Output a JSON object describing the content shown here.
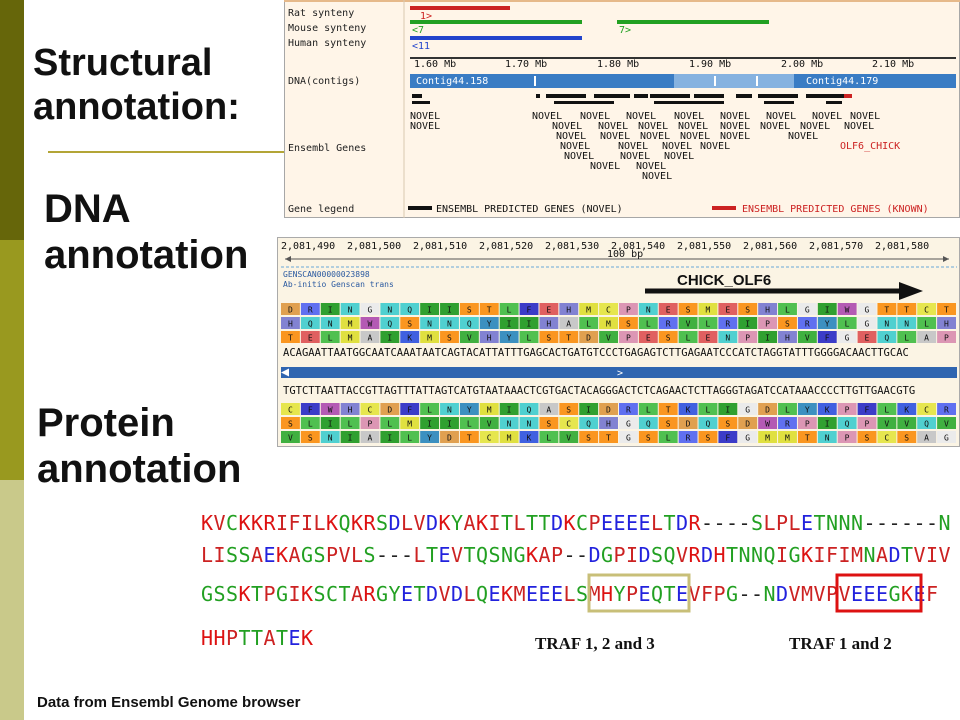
{
  "slide": {
    "heading_structural": "Structural\nannotation:",
    "heading_dna": "DNA\nannotation",
    "heading_protein": "Protein\nannotation",
    "footer": "Data from Ensembl Genome browser"
  },
  "ensembl_panel": {
    "track_rat": "Rat synteny",
    "track_mouse": "Mouse synteny",
    "track_human": "Human synteny",
    "track_dna": "DNA(contigs)",
    "track_genes": "Ensembl Genes",
    "track_legend": "Gene legend",
    "synteny_rat": "1>",
    "synteny_mouse_left": "<7",
    "synteny_mouse_right": "7>",
    "synteny_human": "<11",
    "scale_ticks": [
      "1.60 Mb",
      "1.70 Mb",
      "1.80 Mb",
      "1.90 Mb",
      "2.00 Mb",
      "2.10 Mb"
    ],
    "contig_left": "Contig44.158",
    "contig_right": "Contig44.179",
    "gene_known": "OLF6_CHICK",
    "gene_novel": "NOVEL",
    "legend_novel": "ENSEMBL PREDICTED GENES (NOVEL)",
    "legend_known": "ENSEMBL PREDICTED GENES (KNOWN)",
    "colors": {
      "rat": "#cc2222",
      "mouse": "#22a022",
      "human": "#2244cc",
      "contig": "#3a7cc4",
      "known": "#cc2222"
    }
  },
  "dna_panel": {
    "coords": [
      "2,081,490",
      "2,081,500",
      "2,081,510",
      "2,081,520",
      "2,081,530",
      "2,081,540",
      "2,081,550",
      "2,081,560",
      "2,081,570",
      "2,081,580"
    ],
    "scale_label": "100 bp",
    "genscan_id": "GENSCAN00000023898",
    "genscan_desc": "Ab-initio Genscan trans",
    "gene_label": "CHICK_OLF6",
    "aa_row1": "DRINGNQIISTLFEHMCPNESMESHLGIWGTTCT",
    "aa_row2": "HQNMWQSNNQYIIHALMSLRVLRIPSRYLGNNLH",
    "aa_row3": "TELMAIKMSVHYLSTDVPESLENPIHVFGEQLAP",
    "dna_forward": "ACAGAATTAATGGCAATCAAATAATCAGTACATTATTTGAGCACTGATGTCCCTGAGAGTCTTGAGAATCCCATCTAGGTATTTGGGGACAACTTGCAC",
    "dna_reverse": "TGTCTTAATTACCGTTAGTTTATTAGTCATGTAATAAACTCGTGACTACAGGGACTCTCAGAACTCTTAGGGTAGATCCATAAACCCCTTGTTGAACGTG",
    "aa_row4": "CFWHCDFLNYMIQASIDRLTKLIGDLYKPFLKCR",
    "aa_row5": "SLILPLMIILVNNSCQHGQSDQSDWRPIQPVVQV",
    "aa_row6": "VSNIAILYDTCMKLVSTGSLRSFGMMTNPSCSAG"
  },
  "protein_panel": {
    "line1": "KVCKKRIFILKQKRSDLVDKYAKITLTTDKCPEEEELTDR----SLPLETNNN------N",
    "line2": "LISSAEKAGSPVLS---LTEVTQSNGKAP--DGPIDSQVRDHTNNQIGKIFIMNADTVIV",
    "line3": "GSSKTPGIKSCTARGYETDVDLQEKMEEELSMHYPEQTEVFPG--NDVMVPVEEEGKEF",
    "line4": "HHPTTATEK",
    "traf_123": "TRAF 1, 2 and 3",
    "traf_12": "TRAF 1 and 2",
    "box_colors": {
      "traf_123": "#c8bf78",
      "traf_12": "#dd1111"
    }
  }
}
